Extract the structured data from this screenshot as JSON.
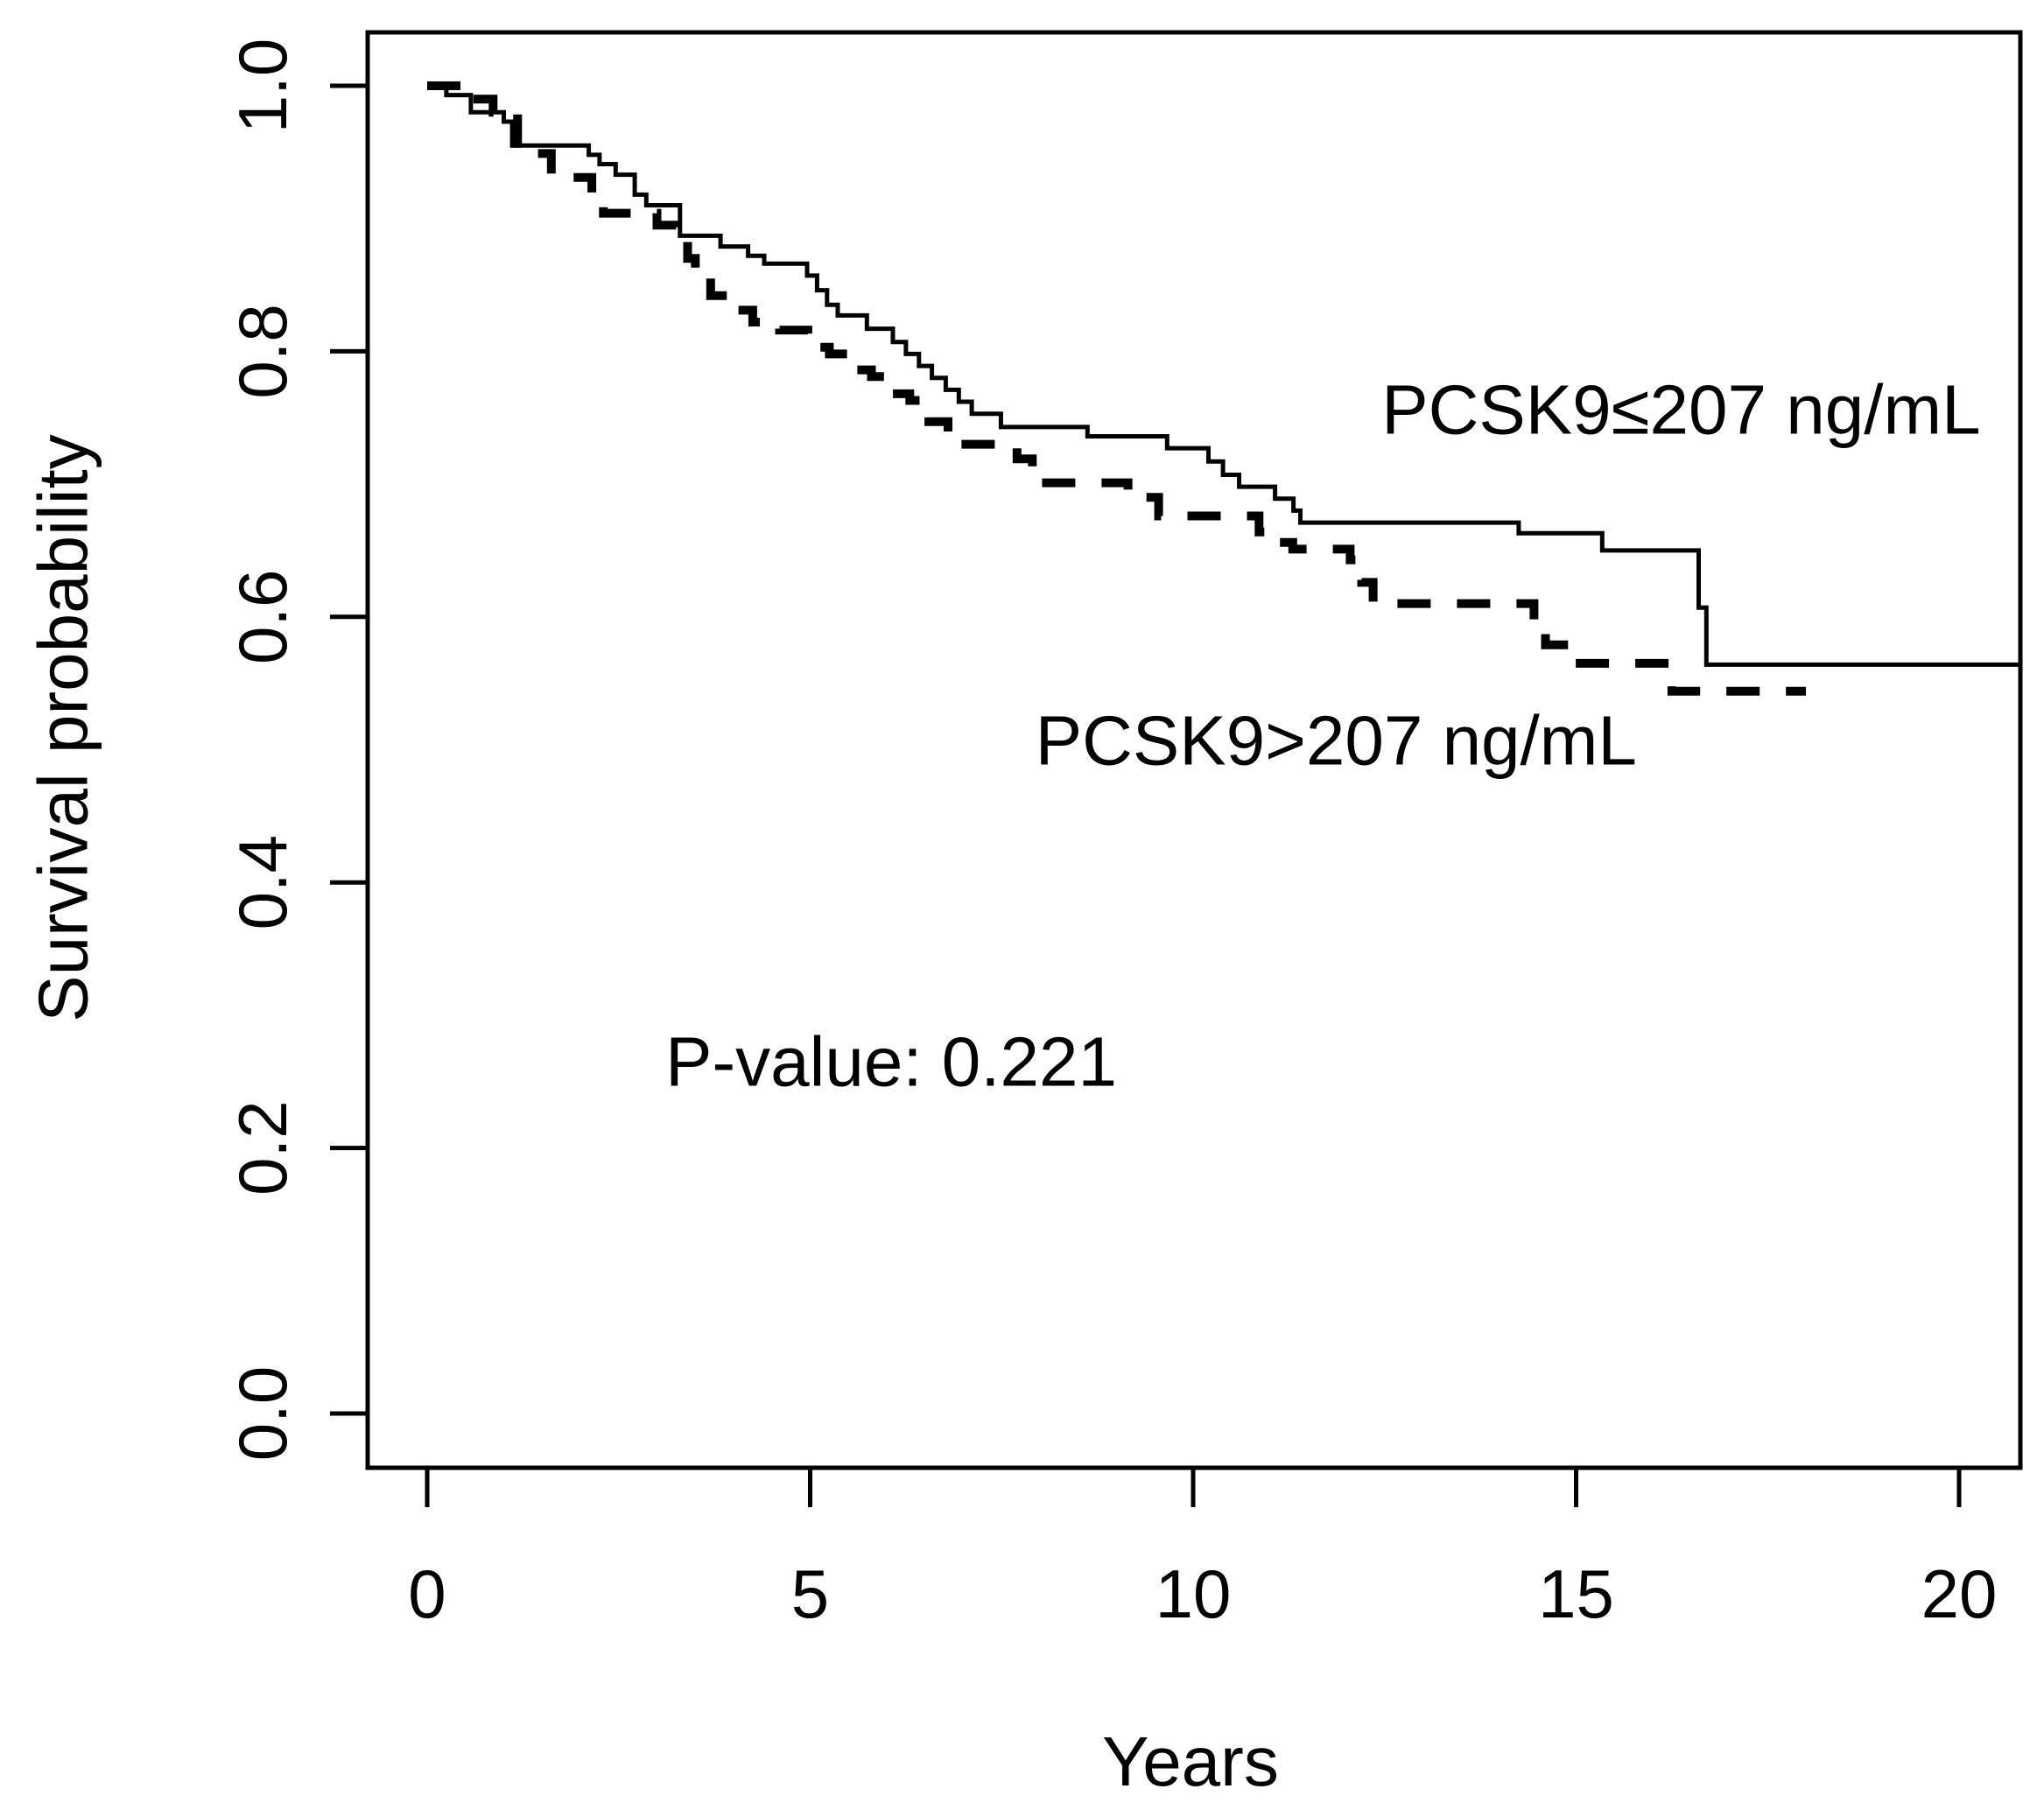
{
  "figure": {
    "background_color": "#ffffff",
    "axis_color": "#000000",
    "text_color": "#000000"
  },
  "chart_data": {
    "type": "line",
    "subtype": "kaplan-meier-step-curves",
    "title": "",
    "xlabel": "Years",
    "ylabel": "Survival probability",
    "xlim": [
      -0.8,
      20.8
    ],
    "ylim": [
      -0.04,
      1.04
    ],
    "grid": false,
    "legend_position": "inline-annotations",
    "x_ticks": [
      {
        "v": 0,
        "label": "0"
      },
      {
        "v": 5,
        "label": "5"
      },
      {
        "v": 10,
        "label": "10"
      },
      {
        "v": 15,
        "label": "15"
      },
      {
        "v": 20,
        "label": "20"
      }
    ],
    "y_ticks": [
      {
        "v": 0.0,
        "label": "0.0"
      },
      {
        "v": 0.2,
        "label": "0.2"
      },
      {
        "v": 0.4,
        "label": "0.4"
      },
      {
        "v": 0.6,
        "label": "0.6"
      },
      {
        "v": 0.8,
        "label": "0.8"
      },
      {
        "v": 1.0,
        "label": "1.0"
      }
    ],
    "series": [
      {
        "name": "PCSK9≤207 ng/mL",
        "line_style": "solid",
        "color": "#000000",
        "end_time": 20.8,
        "points": [
          [
            0,
            1.0
          ],
          [
            0.25,
            0.993
          ],
          [
            0.57,
            0.98
          ],
          [
            1.0,
            0.973
          ],
          [
            1.11,
            0.955
          ],
          [
            2.11,
            0.948
          ],
          [
            2.25,
            0.941
          ],
          [
            2.46,
            0.933
          ],
          [
            2.71,
            0.918
          ],
          [
            2.86,
            0.91
          ],
          [
            3.3,
            0.887
          ],
          [
            3.83,
            0.879
          ],
          [
            4.19,
            0.872
          ],
          [
            4.4,
            0.866
          ],
          [
            4.96,
            0.857
          ],
          [
            5.09,
            0.846
          ],
          [
            5.22,
            0.835
          ],
          [
            5.36,
            0.827
          ],
          [
            5.74,
            0.817
          ],
          [
            6.08,
            0.807
          ],
          [
            6.25,
            0.798
          ],
          [
            6.42,
            0.789
          ],
          [
            6.59,
            0.78
          ],
          [
            6.77,
            0.771
          ],
          [
            6.94,
            0.762
          ],
          [
            7.11,
            0.753
          ],
          [
            7.49,
            0.743
          ],
          [
            8.62,
            0.736
          ],
          [
            9.66,
            0.727
          ],
          [
            10.2,
            0.717
          ],
          [
            10.39,
            0.707
          ],
          [
            10.6,
            0.698
          ],
          [
            11.07,
            0.689
          ],
          [
            11.31,
            0.68
          ],
          [
            11.4,
            0.671
          ],
          [
            14.25,
            0.663
          ],
          [
            15.34,
            0.65
          ],
          [
            16.6,
            0.607
          ],
          [
            16.7,
            0.564
          ]
        ]
      },
      {
        "name": "PCSK9>207 ng/mL",
        "line_style": "dashed",
        "color": "#000000",
        "end_time": 18.0,
        "points": [
          [
            0,
            1.0
          ],
          [
            0.45,
            0.99
          ],
          [
            0.86,
            0.98
          ],
          [
            1.18,
            0.949
          ],
          [
            1.62,
            0.931
          ],
          [
            2.15,
            0.918
          ],
          [
            2.3,
            0.904
          ],
          [
            3.0,
            0.895
          ],
          [
            3.25,
            0.885
          ],
          [
            3.4,
            0.87
          ],
          [
            3.5,
            0.855
          ],
          [
            3.7,
            0.842
          ],
          [
            3.93,
            0.831
          ],
          [
            4.25,
            0.822
          ],
          [
            4.6,
            0.816
          ],
          [
            4.97,
            0.803
          ],
          [
            5.25,
            0.798
          ],
          [
            5.53,
            0.786
          ],
          [
            5.8,
            0.781
          ],
          [
            6.02,
            0.768
          ],
          [
            6.3,
            0.763
          ],
          [
            6.55,
            0.747
          ],
          [
            6.8,
            0.73
          ],
          [
            7.7,
            0.719
          ],
          [
            7.9,
            0.701
          ],
          [
            9.15,
            0.69
          ],
          [
            9.55,
            0.676
          ],
          [
            10.86,
            0.664
          ],
          [
            11.1,
            0.656
          ],
          [
            11.3,
            0.651
          ],
          [
            12.05,
            0.643
          ],
          [
            12.2,
            0.626
          ],
          [
            12.35,
            0.61
          ],
          [
            14.45,
            0.598
          ],
          [
            14.6,
            0.579
          ],
          [
            14.95,
            0.565
          ],
          [
            16.25,
            0.544
          ]
        ]
      }
    ],
    "annotations": [
      {
        "text": "PCSK9≤207 ng/mL",
        "x_years": 12.46,
        "y_prob": 0.756
      },
      {
        "text": "PCSK9>207 ng/mL",
        "x_years": 7.94,
        "y_prob": 0.507
      },
      {
        "text": "P-value: 0.221",
        "x_years": 3.11,
        "y_prob": 0.265
      }
    ]
  }
}
